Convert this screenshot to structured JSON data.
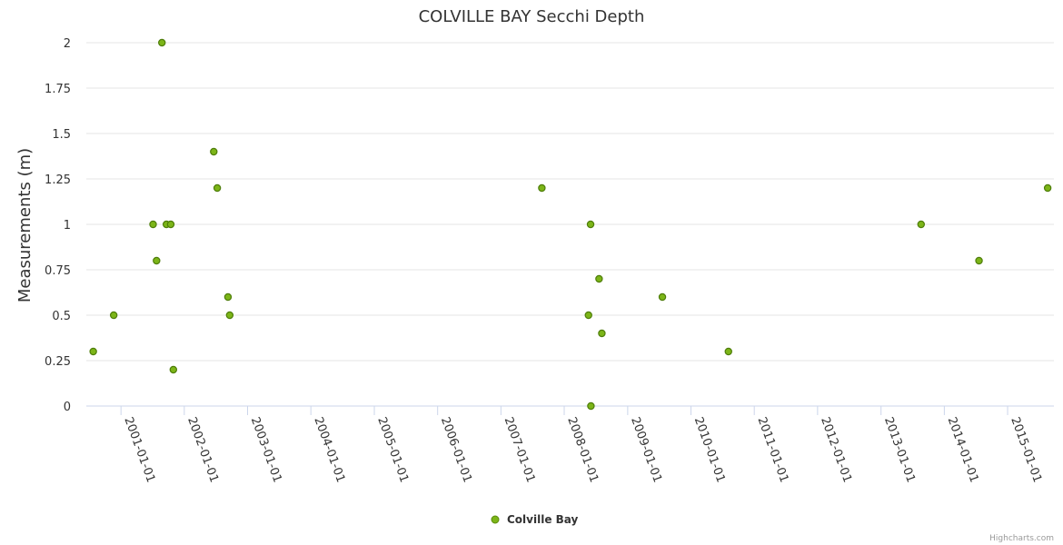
{
  "chart_data": {
    "type": "scatter",
    "title": "COLVILLE BAY Secchi Depth",
    "xlabel": "",
    "ylabel": "Measurements (m)",
    "ylim": [
      0,
      2
    ],
    "yticks": [
      "0",
      "0.25",
      "0.5",
      "0.75",
      "1",
      "1.25",
      "1.5",
      "1.75",
      "2"
    ],
    "xlim": [
      "2000-06-15",
      "2015-09-25"
    ],
    "xticks": [
      "2001-01-01",
      "2002-01-01",
      "2003-01-01",
      "2004-01-01",
      "2005-01-01",
      "2006-01-01",
      "2007-01-01",
      "2008-01-01",
      "2009-01-01",
      "2010-01-01",
      "2011-01-01",
      "2012-01-01",
      "2013-01-01",
      "2014-01-01",
      "2015-01-01"
    ],
    "legend_position": "bottom-center",
    "color": "#7cb518",
    "series": [
      {
        "name": "Colville Bay",
        "points": [
          {
            "x": "2000-07-25",
            "y": 0.3
          },
          {
            "x": "2000-11-20",
            "y": 0.5
          },
          {
            "x": "2001-07-05",
            "y": 1.0
          },
          {
            "x": "2001-07-25",
            "y": 0.8
          },
          {
            "x": "2001-08-25",
            "y": 2.0
          },
          {
            "x": "2001-09-20",
            "y": 1.0
          },
          {
            "x": "2001-10-15",
            "y": 1.0
          },
          {
            "x": "2001-10-30",
            "y": 0.2
          },
          {
            "x": "2002-06-20",
            "y": 1.4
          },
          {
            "x": "2002-07-10",
            "y": 1.2
          },
          {
            "x": "2002-09-10",
            "y": 0.6
          },
          {
            "x": "2002-09-20",
            "y": 0.5
          },
          {
            "x": "2007-08-25",
            "y": 1.2
          },
          {
            "x": "2008-05-20",
            "y": 0.5
          },
          {
            "x": "2008-06-01",
            "y": 1.0
          },
          {
            "x": "2008-06-03",
            "y": 0.0
          },
          {
            "x": "2008-07-20",
            "y": 0.7
          },
          {
            "x": "2008-08-05",
            "y": 0.4
          },
          {
            "x": "2009-07-20",
            "y": 0.6
          },
          {
            "x": "2010-08-05",
            "y": 0.3
          },
          {
            "x": "2013-08-20",
            "y": 1.0
          },
          {
            "x": "2014-07-20",
            "y": 0.8
          },
          {
            "x": "2015-08-20",
            "y": 1.2
          }
        ]
      }
    ]
  },
  "credits": "Highcharts.com"
}
